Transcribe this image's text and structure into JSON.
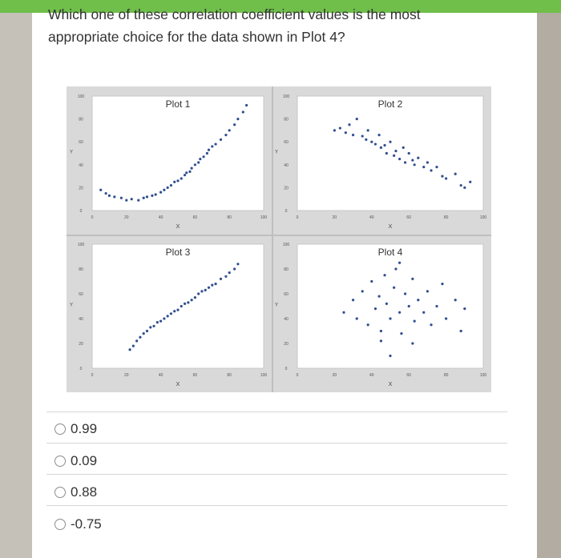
{
  "question": {
    "line1": "Which one of these correlation coefficient values is the most",
    "line2": "appropriate choice for the data shown in Plot 4?"
  },
  "options": [
    {
      "label": "0.99"
    },
    {
      "label": "0.09"
    },
    {
      "label": "0.88"
    },
    {
      "label": "-0.75"
    }
  ],
  "chart_data": [
    {
      "type": "scatter",
      "title": "Plot 1",
      "xlabel": "X",
      "ylabel": "Y",
      "xticks": [
        "0",
        "20",
        "40",
        "60",
        "80",
        "100"
      ],
      "yticks": [
        "0",
        "20",
        "40",
        "60",
        "80",
        "100"
      ],
      "xlim": [
        0,
        100
      ],
      "ylim": [
        0,
        100
      ],
      "x": [
        5,
        8,
        10,
        13,
        17,
        20,
        23,
        27,
        30,
        32,
        35,
        37,
        40,
        42,
        44,
        46,
        48,
        50,
        52,
        54,
        55,
        57,
        58,
        60,
        62,
        63,
        65,
        67,
        68,
        70,
        72,
        75,
        78,
        80,
        83,
        85,
        88,
        90
      ],
      "y": [
        18,
        15,
        13,
        12,
        11,
        9,
        10,
        9,
        11,
        12,
        13,
        14,
        16,
        18,
        20,
        22,
        25,
        26,
        28,
        31,
        33,
        34,
        37,
        40,
        42,
        45,
        47,
        50,
        53,
        56,
        58,
        62,
        66,
        70,
        75,
        80,
        86,
        92
      ]
    },
    {
      "type": "scatter",
      "title": "Plot 2",
      "xlabel": "X",
      "ylabel": "Y",
      "xticks": [
        "0",
        "20",
        "40",
        "60",
        "80",
        "100"
      ],
      "yticks": [
        "0",
        "20",
        "40",
        "60",
        "80",
        "100"
      ],
      "xlim": [
        0,
        100
      ],
      "ylim": [
        0,
        100
      ],
      "x": [
        20,
        23,
        26,
        28,
        30,
        32,
        35,
        37,
        38,
        40,
        42,
        44,
        45,
        47,
        48,
        50,
        52,
        53,
        55,
        57,
        58,
        60,
        62,
        63,
        65,
        68,
        70,
        72,
        75,
        78,
        80,
        85,
        88,
        90,
        93
      ],
      "y": [
        70,
        72,
        68,
        75,
        66,
        80,
        65,
        62,
        70,
        60,
        58,
        66,
        55,
        57,
        50,
        60,
        48,
        52,
        45,
        55,
        42,
        50,
        44,
        40,
        46,
        38,
        42,
        35,
        38,
        30,
        28,
        32,
        22,
        20,
        25
      ]
    },
    {
      "type": "scatter",
      "title": "Plot 3",
      "xlabel": "X",
      "ylabel": "Y",
      "xticks": [
        "0",
        "20",
        "40",
        "60",
        "80",
        "100"
      ],
      "yticks": [
        "0",
        "20",
        "40",
        "60",
        "80",
        "100"
      ],
      "xlim": [
        0,
        100
      ],
      "ylim": [
        0,
        100
      ],
      "x": [
        22,
        24,
        26,
        28,
        30,
        32,
        34,
        36,
        38,
        40,
        42,
        44,
        46,
        48,
        50,
        52,
        54,
        56,
        58,
        60,
        62,
        64,
        66,
        68,
        70,
        72,
        75,
        78,
        80,
        83,
        85
      ],
      "y": [
        15,
        18,
        22,
        25,
        28,
        30,
        33,
        34,
        37,
        38,
        40,
        42,
        44,
        46,
        47,
        50,
        52,
        53,
        55,
        57,
        60,
        62,
        63,
        65,
        67,
        68,
        72,
        74,
        77,
        80,
        84
      ]
    },
    {
      "type": "scatter",
      "title": "Plot 4",
      "xlabel": "X",
      "ylabel": "Y",
      "xticks": [
        "0",
        "20",
        "40",
        "60",
        "80",
        "100"
      ],
      "yticks": [
        "0",
        "20",
        "40",
        "60",
        "80",
        "100"
      ],
      "xlim": [
        0,
        100
      ],
      "ylim": [
        0,
        100
      ],
      "x": [
        25,
        30,
        32,
        35,
        38,
        40,
        42,
        44,
        45,
        47,
        48,
        50,
        52,
        53,
        55,
        56,
        58,
        60,
        62,
        63,
        65,
        68,
        70,
        72,
        75,
        78,
        80,
        85,
        88,
        90,
        45,
        55,
        62,
        50
      ],
      "y": [
        45,
        55,
        40,
        62,
        35,
        70,
        48,
        58,
        30,
        75,
        52,
        40,
        65,
        80,
        45,
        28,
        60,
        50,
        72,
        38,
        55,
        45,
        62,
        35,
        50,
        68,
        40,
        55,
        30,
        48,
        22,
        85,
        20,
        10
      ]
    }
  ]
}
